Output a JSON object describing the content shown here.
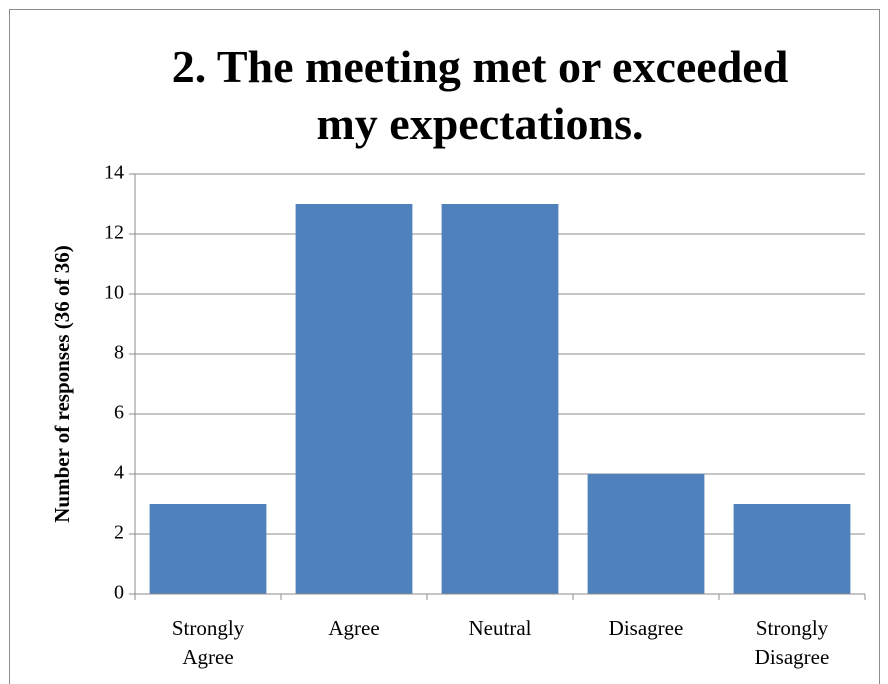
{
  "chart_data": {
    "type": "bar",
    "title": "2. The meeting met or exceeded my expectations.",
    "y_label": "Number of responses (36 of 36)",
    "categories": [
      "Strongly Agree",
      "Agree",
      "Neutral",
      "Disagree",
      "Strongly Disagree"
    ],
    "values": [
      3,
      13,
      13,
      4,
      3
    ],
    "color": "#4f81bd",
    "ylim": [
      0,
      14
    ],
    "yticks": [
      0,
      2,
      4,
      6,
      8,
      10,
      12,
      14
    ],
    "grid": true
  }
}
